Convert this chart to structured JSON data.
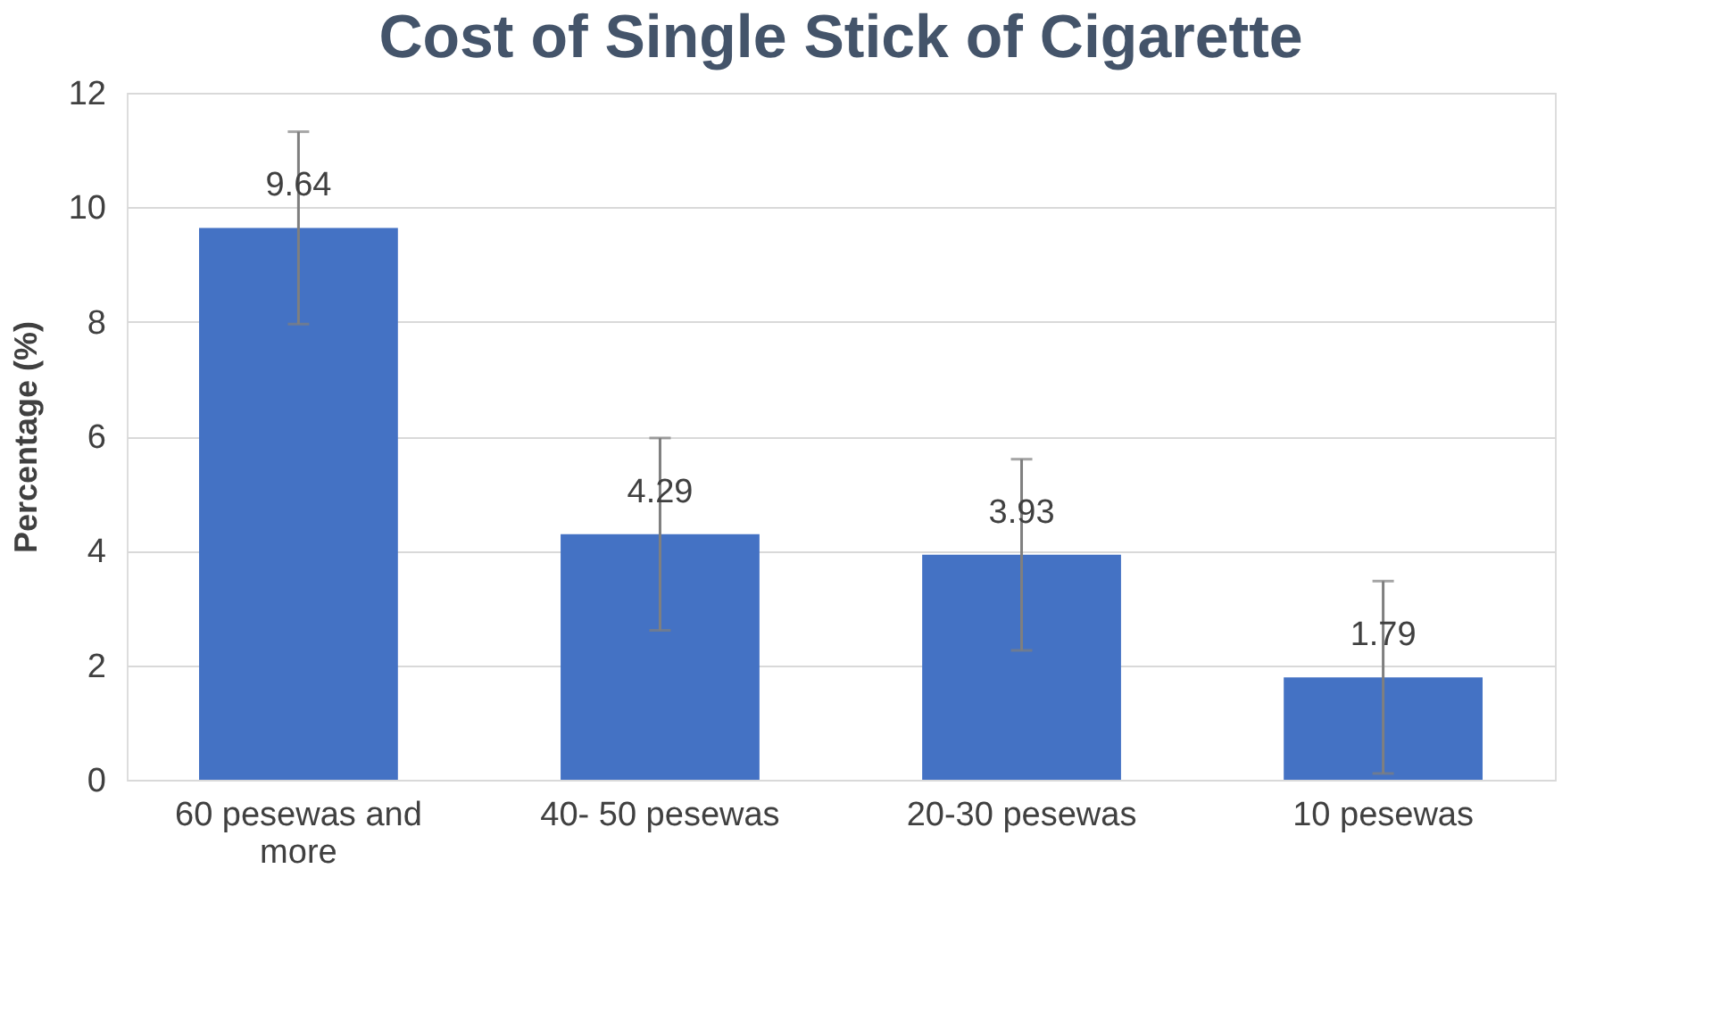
{
  "chart_data": {
    "type": "bar",
    "title": "Cost of Single Stick of Cigarette",
    "ylabel": "Percentage (%)",
    "categories": [
      "60 pesewas and more",
      "40- 50 pesewas",
      "20-30 pesewas",
      "10 pesewas"
    ],
    "values": [
      9.64,
      4.29,
      3.93,
      1.79
    ],
    "errors": [
      1.68,
      1.68,
      1.67,
      1.68
    ],
    "color": "#4472c4",
    "ylim": [
      0,
      12
    ],
    "yticks": [
      0,
      2,
      4,
      6,
      8,
      10,
      12
    ],
    "grid": "y",
    "data_labels": true
  }
}
